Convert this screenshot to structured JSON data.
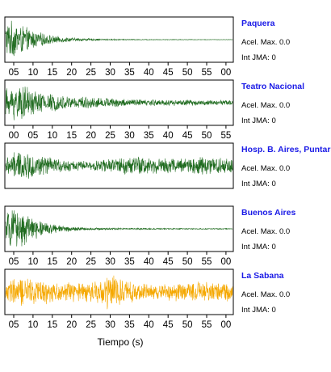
{
  "chart_data": {
    "type": "line",
    "xlabel": "Tiempo (s)",
    "panels": [
      {
        "station": "Paquera",
        "acel_label": "Acel. Max. 0.0",
        "int_label": "Int JMA: 0",
        "color": "#1f6b1f",
        "tick_labels": [
          "05",
          "10",
          "15",
          "20",
          "25",
          "30",
          "35",
          "40",
          "45",
          "50",
          "55",
          "00"
        ],
        "show_ticks": true,
        "envelope": [
          {
            "t": 0.0,
            "a": 0.95
          },
          {
            "t": 3.0,
            "a": 0.85
          },
          {
            "t": 6.0,
            "a": 0.55
          },
          {
            "t": 9.0,
            "a": 0.35
          },
          {
            "t": 13.0,
            "a": 0.18
          },
          {
            "t": 18.0,
            "a": 0.09
          },
          {
            "t": 25.0,
            "a": 0.04
          },
          {
            "t": 35.0,
            "a": 0.02
          },
          {
            "t": 60.0,
            "a": 0.01
          }
        ]
      },
      {
        "station": "Teatro Nacional",
        "acel_label": "Acel. Max. 0.0",
        "int_label": "Int JMA: 0",
        "color": "#1f6b1f",
        "tick_labels": [
          "00",
          "05",
          "10",
          "15",
          "20",
          "25",
          "30",
          "35",
          "40",
          "45",
          "50",
          "55"
        ],
        "show_ticks": true,
        "envelope": [
          {
            "t": 0.0,
            "a": 0.7
          },
          {
            "t": 3.0,
            "a": 0.95
          },
          {
            "t": 6.0,
            "a": 0.75
          },
          {
            "t": 10.0,
            "a": 0.5
          },
          {
            "t": 15.0,
            "a": 0.35
          },
          {
            "t": 25.0,
            "a": 0.25
          },
          {
            "t": 35.0,
            "a": 0.18
          },
          {
            "t": 45.0,
            "a": 0.15
          },
          {
            "t": 60.0,
            "a": 0.12
          }
        ]
      },
      {
        "station": "Hosp. B. Aires, Puntare",
        "acel_label": "Acel. Max. 0.0",
        "int_label": "Int JMA: 0",
        "color": "#1f6b1f",
        "tick_labels": [],
        "show_ticks": false,
        "envelope": [
          {
            "t": 0.0,
            "a": 0.4
          },
          {
            "t": 3.0,
            "a": 0.75
          },
          {
            "t": 8.0,
            "a": 0.55
          },
          {
            "t": 15.0,
            "a": 0.3
          },
          {
            "t": 22.0,
            "a": 0.22
          },
          {
            "t": 28.0,
            "a": 0.35
          },
          {
            "t": 33.0,
            "a": 0.5
          },
          {
            "t": 38.0,
            "a": 0.45
          },
          {
            "t": 45.0,
            "a": 0.35
          },
          {
            "t": 52.0,
            "a": 0.5
          },
          {
            "t": 60.0,
            "a": 0.4
          }
        ]
      },
      {
        "station": "Buenos Aires",
        "acel_label": "Acel. Max. 0.0",
        "int_label": "Int JMA: 0",
        "color": "#1f6b1f",
        "tick_labels": [
          "05",
          "10",
          "15",
          "20",
          "25",
          "30",
          "35",
          "40",
          "45",
          "50",
          "55",
          "00"
        ],
        "show_ticks": true,
        "envelope": [
          {
            "t": 0.0,
            "a": 0.8
          },
          {
            "t": 3.0,
            "a": 0.95
          },
          {
            "t": 6.0,
            "a": 0.7
          },
          {
            "t": 10.0,
            "a": 0.35
          },
          {
            "t": 15.0,
            "a": 0.15
          },
          {
            "t": 22.0,
            "a": 0.06
          },
          {
            "t": 35.0,
            "a": 0.04
          },
          {
            "t": 60.0,
            "a": 0.02
          }
        ]
      },
      {
        "station": "La Sabana",
        "acel_label": "Acel. Max. 0.0",
        "int_label": "Int JMA: 0",
        "color": "#f5a800",
        "tick_labels": [
          "05",
          "10",
          "15",
          "20",
          "25",
          "30",
          "35",
          "40",
          "45",
          "50",
          "55",
          "00"
        ],
        "show_ticks": true,
        "envelope": [
          {
            "t": 0.0,
            "a": 0.55
          },
          {
            "t": 5.0,
            "a": 0.75
          },
          {
            "t": 12.0,
            "a": 0.55
          },
          {
            "t": 20.0,
            "a": 0.45
          },
          {
            "t": 25.0,
            "a": 0.6
          },
          {
            "t": 27.5,
            "a": 1.0
          },
          {
            "t": 30.0,
            "a": 0.7
          },
          {
            "t": 35.0,
            "a": 0.4
          },
          {
            "t": 45.0,
            "a": 0.45
          },
          {
            "t": 55.0,
            "a": 0.55
          },
          {
            "t": 60.0,
            "a": 0.45
          }
        ]
      }
    ]
  }
}
